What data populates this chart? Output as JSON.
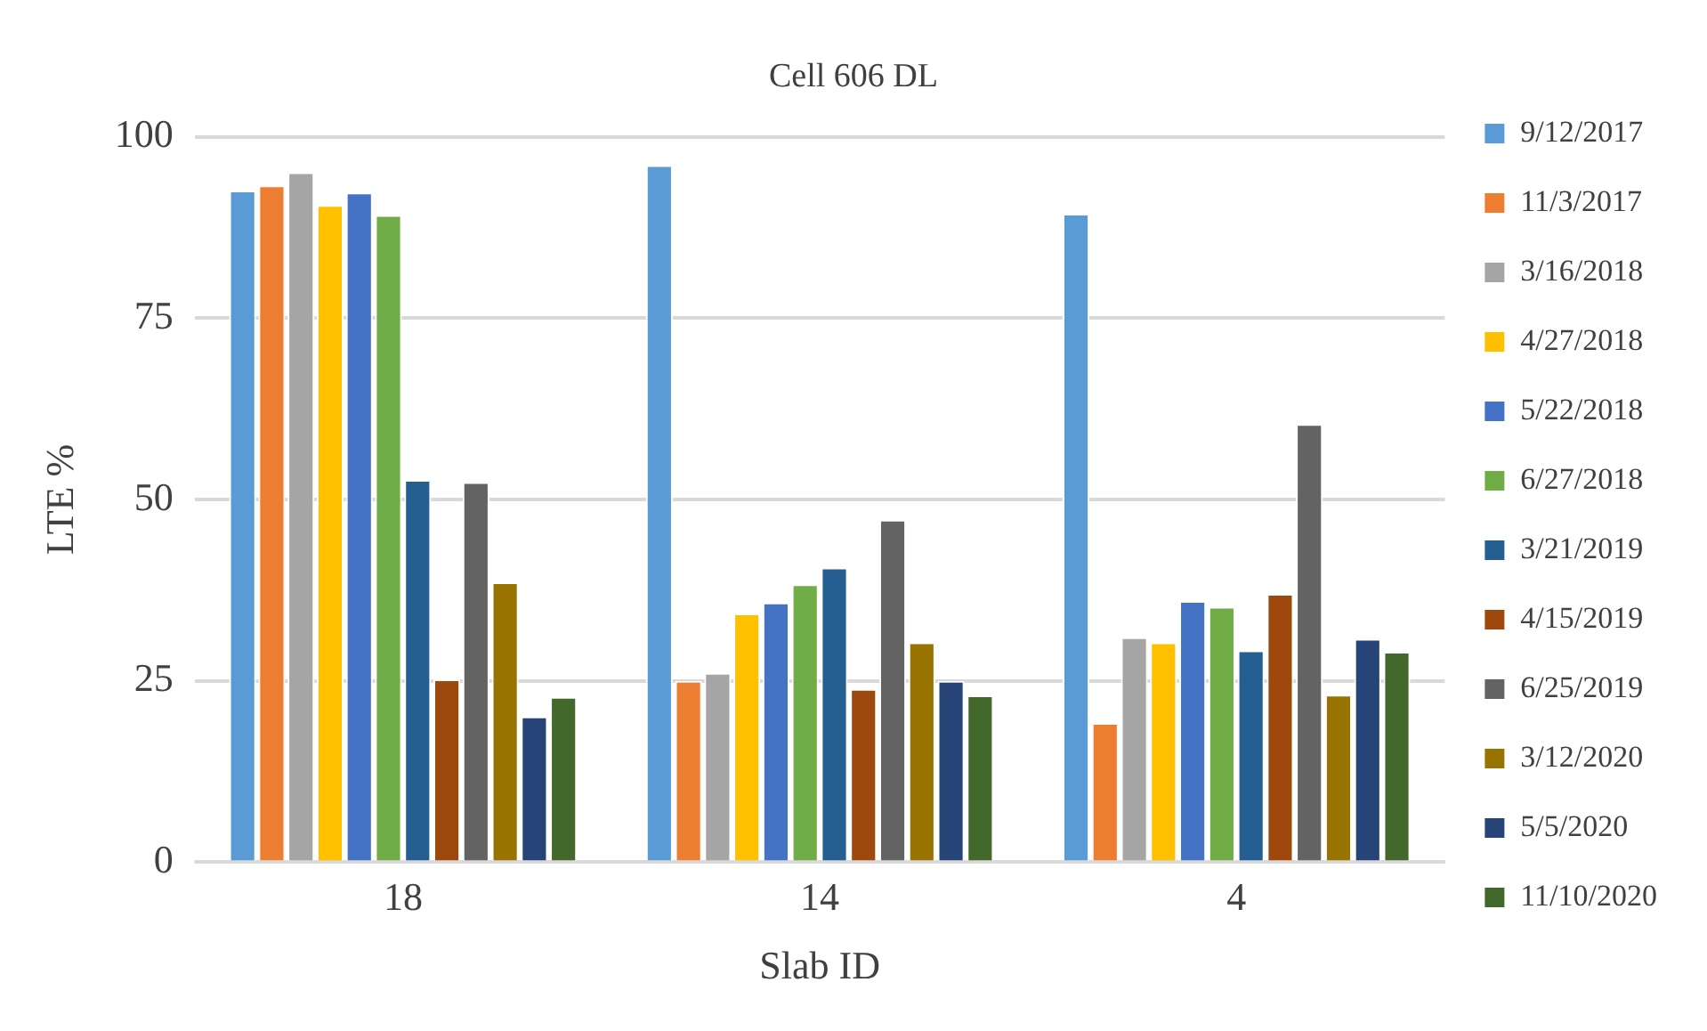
{
  "chart_data": {
    "type": "bar",
    "title": "Cell 606 DL",
    "xlabel": "Slab ID",
    "ylabel": "LTE %",
    "categories": [
      "18",
      "14",
      "4"
    ],
    "series": [
      {
        "name": "9/12/2017",
        "color": "#5b9bd5",
        "values": [
          92.6,
          96.1,
          89.4
        ]
      },
      {
        "name": "11/3/2017",
        "color": "#ed7d31",
        "values": [
          93.3,
          25.0,
          19.2
        ]
      },
      {
        "name": "3/16/2018",
        "color": "#a5a5a5",
        "values": [
          95.1,
          26.1,
          31.0
        ]
      },
      {
        "name": "4/27/2018",
        "color": "#ffc000",
        "values": [
          90.6,
          34.3,
          30.3
        ]
      },
      {
        "name": "5/22/2018",
        "color": "#4472c4",
        "values": [
          92.3,
          35.8,
          36.0
        ]
      },
      {
        "name": "6/27/2018",
        "color": "#70ad47",
        "values": [
          89.2,
          38.3,
          35.2
        ]
      },
      {
        "name": "3/21/2019",
        "color": "#255e91",
        "values": [
          52.7,
          40.6,
          29.2
        ]
      },
      {
        "name": "4/15/2019",
        "color": "#9e480e",
        "values": [
          25.2,
          23.9,
          37.0
        ]
      },
      {
        "name": "6/25/2019",
        "color": "#636363",
        "values": [
          52.4,
          47.2,
          60.4
        ]
      },
      {
        "name": "3/12/2020",
        "color": "#997300",
        "values": [
          38.6,
          30.3,
          23.1
        ]
      },
      {
        "name": "5/5/2020",
        "color": "#264478",
        "values": [
          20.1,
          25.0,
          30.8
        ]
      },
      {
        "name": "11/10/2020",
        "color": "#43682b",
        "values": [
          22.8,
          23.0,
          29.0
        ]
      }
    ],
    "ylim": [
      0,
      100
    ],
    "yticks": [
      0,
      25,
      50,
      75,
      100
    ],
    "grid": "y",
    "legend": "right"
  }
}
